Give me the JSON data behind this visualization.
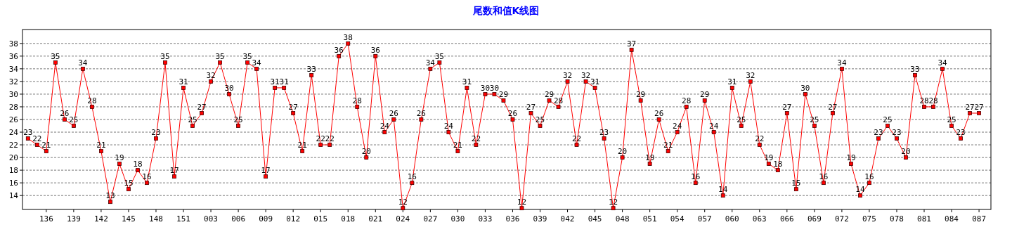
{
  "chart_data": {
    "type": "line",
    "title": "尾数和值K线图",
    "categories": [
      null,
      null,
      "136",
      null,
      null,
      "139",
      null,
      null,
      "142",
      null,
      null,
      "145",
      null,
      null,
      "148",
      null,
      null,
      "151",
      null,
      null,
      "003",
      null,
      null,
      "006",
      null,
      null,
      "009",
      null,
      null,
      "012",
      null,
      null,
      "015",
      null,
      null,
      "018",
      null,
      null,
      "021",
      null,
      null,
      "024",
      null,
      null,
      "027",
      null,
      null,
      "030",
      null,
      null,
      "033",
      null,
      null,
      "036",
      null,
      null,
      "039",
      null,
      null,
      "042",
      null,
      null,
      "045",
      null,
      null,
      "048",
      null,
      null,
      "051",
      null,
      null,
      "054",
      null,
      null,
      "057",
      null,
      null,
      "060",
      null,
      null,
      "063",
      null,
      null,
      "066",
      null,
      null,
      "069",
      null,
      null,
      "072",
      null,
      null,
      "075",
      null,
      null,
      "078",
      null,
      null,
      "081",
      null,
      null,
      "084",
      null,
      null,
      "087"
    ],
    "series": [
      {
        "color": "#ff0000",
        "values": [
          23,
          22,
          21,
          35,
          26,
          25,
          34,
          28,
          21,
          13,
          19,
          15,
          18,
          16,
          23,
          35,
          17,
          31,
          25,
          27,
          32,
          35,
          30,
          25,
          35,
          34,
          17,
          31,
          31,
          27,
          21,
          33,
          22,
          22,
          36,
          38,
          28,
          20,
          36,
          24,
          26,
          12,
          16,
          26,
          34,
          35,
          24,
          21,
          31,
          22,
          30,
          30,
          29,
          26,
          12,
          27,
          25,
          29,
          28,
          32,
          22,
          32,
          31,
          23,
          12,
          20,
          37,
          29,
          19,
          26,
          21,
          24,
          28,
          16,
          29,
          24,
          14,
          31,
          25,
          32,
          22,
          19,
          18,
          27,
          15,
          30,
          25,
          16,
          27,
          34,
          19,
          14,
          16,
          23,
          25,
          23,
          20,
          33,
          28,
          28,
          34,
          25,
          23,
          27,
          27
        ]
      }
    ],
    "ylim": [
      11.8,
      40.2
    ],
    "yticks": [
      14,
      16,
      18,
      20,
      22,
      24,
      26,
      28,
      30,
      32,
      34,
      36,
      38
    ],
    "grid": "y",
    "marker": "square",
    "data_labels": true
  }
}
